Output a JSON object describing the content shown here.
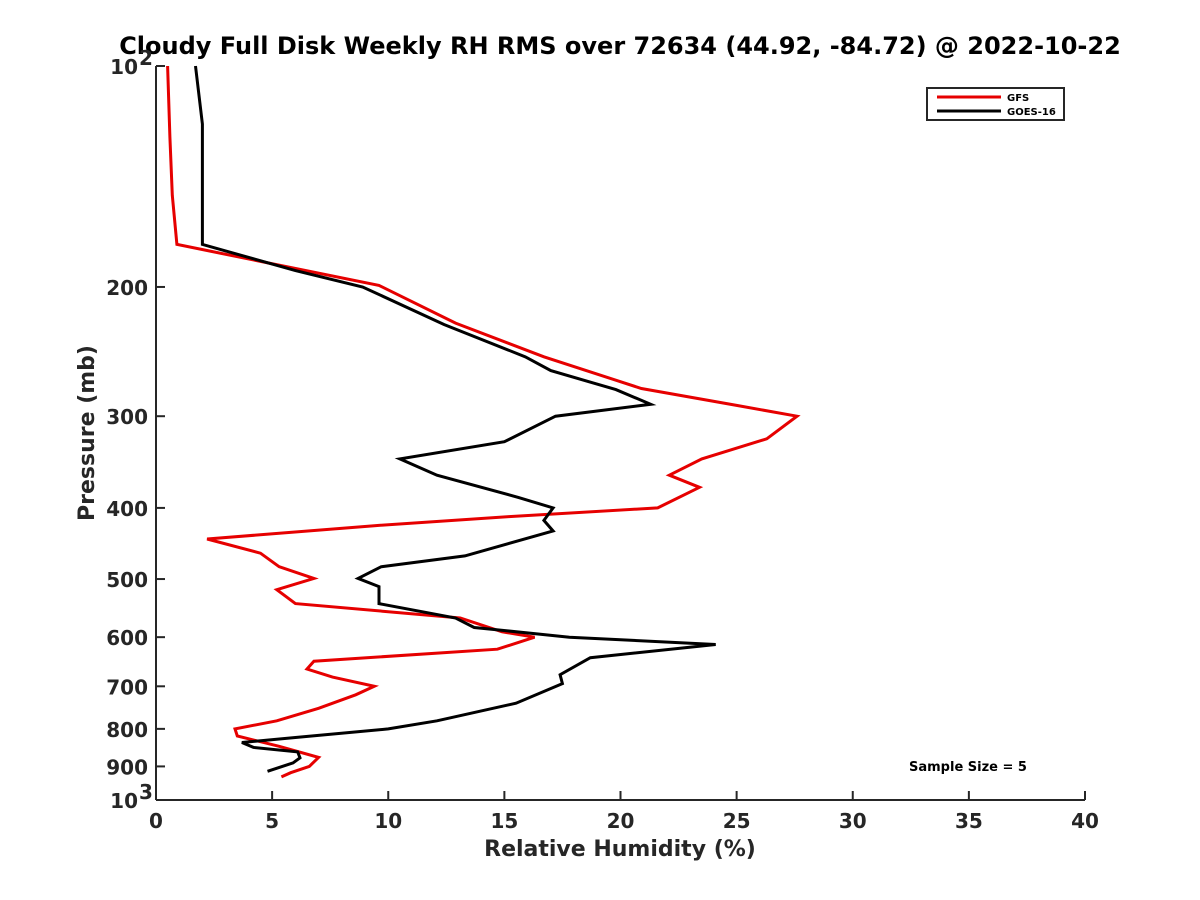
{
  "chart_data": {
    "type": "line",
    "title": "Cloudy Full Disk Weekly RH RMS over 72634 (44.92, -84.72) @ 2022-10-22",
    "xlabel": "Relative Humidity (%)",
    "ylabel": "Pressure (mb)",
    "xlim": [
      0,
      40
    ],
    "ylim": [
      100,
      1000
    ],
    "yscale": "log",
    "y_reversed": true,
    "x_ticks": [
      "0",
      "5",
      "10",
      "15",
      "20",
      "25",
      "30",
      "35",
      "40"
    ],
    "y_ticks": [
      {
        "value": 100,
        "label": "10",
        "sup": "2"
      },
      {
        "value": 200,
        "label": "200",
        "sup": ""
      },
      {
        "value": 300,
        "label": "300",
        "sup": ""
      },
      {
        "value": 400,
        "label": "400",
        "sup": ""
      },
      {
        "value": 500,
        "label": "500",
        "sup": ""
      },
      {
        "value": 600,
        "label": "600",
        "sup": ""
      },
      {
        "value": 700,
        "label": "700",
        "sup": ""
      },
      {
        "value": 800,
        "label": "800",
        "sup": ""
      },
      {
        "value": 900,
        "label": "900",
        "sup": ""
      },
      {
        "value": 1000,
        "label": "10",
        "sup": "3"
      }
    ],
    "grid": false,
    "legend_position": "top-right",
    "annotation": "Sample Size = 5",
    "series": [
      {
        "name": "GFS",
        "color": "#e60000",
        "points": [
          [
            0.5,
            100
          ],
          [
            0.6,
            125
          ],
          [
            0.7,
            150
          ],
          [
            0.9,
            175
          ],
          [
            9.6,
            199
          ],
          [
            12.9,
            224
          ],
          [
            16.7,
            249
          ],
          [
            20.9,
            275
          ],
          [
            25.0,
            290
          ],
          [
            27.6,
            300
          ],
          [
            26.3,
            322
          ],
          [
            23.5,
            343
          ],
          [
            22.1,
            361
          ],
          [
            23.4,
            375
          ],
          [
            21.6,
            400
          ],
          [
            15.2,
            411
          ],
          [
            9.4,
            423
          ],
          [
            2.2,
            441
          ],
          [
            4.5,
            461
          ],
          [
            5.3,
            481
          ],
          [
            6.8,
            499
          ],
          [
            5.2,
            517
          ],
          [
            6.0,
            540
          ],
          [
            13.1,
            565
          ],
          [
            14.9,
            590
          ],
          [
            16.3,
            600
          ],
          [
            14.7,
            623
          ],
          [
            6.8,
            647
          ],
          [
            6.5,
            663
          ],
          [
            7.6,
            680
          ],
          [
            9.4,
            700
          ],
          [
            8.6,
            719
          ],
          [
            7.0,
            750
          ],
          [
            5.2,
            780
          ],
          [
            3.4,
            800
          ],
          [
            3.5,
            818
          ],
          [
            5.3,
            845
          ],
          [
            7.0,
            875
          ],
          [
            6.6,
            900
          ],
          [
            5.8,
            918
          ],
          [
            5.4,
            930
          ]
        ]
      },
      {
        "name": "GOES-16",
        "color": "#000000",
        "points": [
          [
            1.7,
            100
          ],
          [
            2.0,
            120
          ],
          [
            2.0,
            150
          ],
          [
            2.0,
            175
          ],
          [
            6.0,
            190
          ],
          [
            8.9,
            200
          ],
          [
            12.4,
            225
          ],
          [
            15.9,
            249
          ],
          [
            17.0,
            260
          ],
          [
            19.8,
            276
          ],
          [
            21.3,
            289
          ],
          [
            17.2,
            300
          ],
          [
            15.0,
            325
          ],
          [
            10.5,
            343
          ],
          [
            12.1,
            361
          ],
          [
            15.6,
            387
          ],
          [
            17.1,
            400
          ],
          [
            16.7,
            416
          ],
          [
            17.1,
            430
          ],
          [
            13.3,
            465
          ],
          [
            9.7,
            481
          ],
          [
            8.7,
            499
          ],
          [
            9.6,
            512
          ],
          [
            9.6,
            540
          ],
          [
            12.9,
            565
          ],
          [
            13.7,
            582
          ],
          [
            17.8,
            600
          ],
          [
            24.1,
            614
          ],
          [
            18.7,
            640
          ],
          [
            17.4,
            675
          ],
          [
            17.5,
            694
          ],
          [
            15.5,
            738
          ],
          [
            12.1,
            780
          ],
          [
            10.0,
            800
          ],
          [
            6.0,
            822
          ],
          [
            3.7,
            835
          ],
          [
            4.2,
            848
          ],
          [
            6.1,
            860
          ],
          [
            6.2,
            876
          ],
          [
            5.9,
            890
          ],
          [
            4.8,
            914
          ]
        ]
      }
    ]
  }
}
